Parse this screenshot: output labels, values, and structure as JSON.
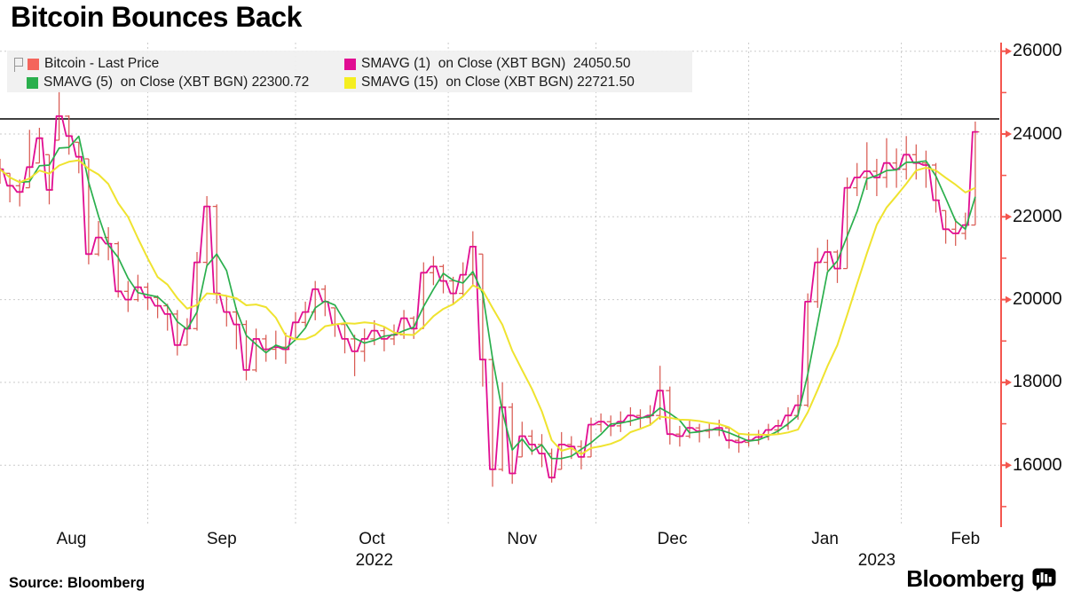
{
  "page": {
    "title": "Bitcoin Bounces Back",
    "source": "Source: Bloomberg",
    "brand": "Bloomberg"
  },
  "legend": {
    "items": [
      {
        "label": "Bitcoin - Last Price",
        "color": "#f4655c"
      },
      {
        "label": "SMAVG (1)  on Close (XBT BGN)  24050.50",
        "color": "#e10d92"
      },
      {
        "label": "SMAVG (5)  on Close (XBT BGN) 22300.72",
        "color": "#2aaf4d"
      },
      {
        "label": "SMAVG (15)  on Close (XBT BGN) 22721.50",
        "color": "#f5ee20"
      }
    ]
  },
  "chart_data": {
    "type": "line",
    "title": "Bitcoin Bounces Back",
    "description": "Daily Bitcoin price (high/low bars with close line) with 5- and 15-period simple moving averages, Aug 2022 - Feb 2023",
    "start_date": "2022-08-02",
    "sample_interval_days": 2,
    "grid": true,
    "legend_position": "top-left",
    "ylim": [
      14600,
      26200
    ],
    "y_ticks": [
      26000,
      24000,
      22000,
      20000,
      18000,
      16000
    ],
    "y_minor_ticks": [
      25000,
      23000,
      21000,
      19000,
      17000,
      15000
    ],
    "ref_line_value": 24364,
    "axis_color": "#f4564e",
    "months": [
      {
        "label": "Aug",
        "mid_day": 14.5
      },
      {
        "label": "Sep",
        "mid_day": 45
      },
      {
        "label": "Oct",
        "mid_day": 75.5
      },
      {
        "label": "Nov",
        "mid_day": 106
      },
      {
        "label": "Dec",
        "mid_day": 136.5
      },
      {
        "label": "Jan",
        "mid_day": 167.5
      },
      {
        "label": "Feb",
        "mid_day": 196
      }
    ],
    "month_start_days": [
      30,
      60,
      91,
      121,
      152,
      183
    ],
    "years": [
      {
        "label": "2022",
        "day": 76
      },
      {
        "label": "2023",
        "day": 178
      }
    ],
    "series": [
      {
        "name": "Bitcoin - Last Price",
        "type": "hlc-bars",
        "bar_color": "#d95b53",
        "close": [
          23150,
          22750,
          22600,
          23200,
          23900,
          22650,
          24430,
          23950,
          23450,
          21100,
          21500,
          21350,
          20200,
          20000,
          20300,
          20050,
          19850,
          19650,
          18900,
          19300,
          20900,
          22250,
          20150,
          19700,
          19400,
          18300,
          19050,
          18800,
          18850,
          18800,
          19450,
          19700,
          20250,
          19950,
          19400,
          19050,
          18750,
          19050,
          19250,
          19050,
          19150,
          19550,
          19300,
          20650,
          20800,
          20450,
          20150,
          20600,
          21280,
          18550,
          15900,
          17400,
          15800,
          16700,
          16500,
          16280,
          15700,
          16500,
          16450,
          16200,
          16980,
          17050,
          16950,
          17050,
          17200,
          17150,
          17200,
          17800,
          16750,
          16700,
          16900,
          16820,
          16850,
          16900,
          16600,
          16550,
          16600,
          16680,
          16850,
          16950,
          17200,
          17450,
          19950,
          20900,
          21150,
          20750,
          22700,
          22950,
          23100,
          22950,
          23300,
          23150,
          23500,
          23300,
          23250,
          22400,
          21700,
          21600,
          21800,
          24050.5
        ],
        "high": [
          23400,
          23050,
          22900,
          24100,
          24150,
          23500,
          25050,
          24450,
          23800,
          23400,
          21900,
          21750,
          21400,
          20450,
          20600,
          20400,
          20100,
          19900,
          19750,
          19550,
          21150,
          22500,
          22300,
          20100,
          19800,
          19500,
          19300,
          19150,
          19250,
          19200,
          19700,
          19950,
          20450,
          20350,
          19800,
          19400,
          19150,
          19300,
          19500,
          19350,
          19400,
          19750,
          19600,
          20900,
          21050,
          20850,
          20550,
          20900,
          21650,
          21100,
          18600,
          18000,
          17500,
          17050,
          16850,
          16750,
          16400,
          16800,
          16700,
          16600,
          17150,
          17250,
          17200,
          17300,
          17400,
          17350,
          17450,
          18400,
          17900,
          16950,
          17100,
          17000,
          17000,
          17100,
          16900,
          16750,
          16800,
          16850,
          17000,
          17100,
          17400,
          17700,
          20150,
          21250,
          21450,
          21200,
          22950,
          23300,
          23800,
          23400,
          23900,
          23650,
          23950,
          23750,
          23600,
          23300,
          22150,
          21950,
          22100,
          24300
        ],
        "low": [
          22800,
          22350,
          22250,
          22700,
          23300,
          22300,
          23850,
          23500,
          23050,
          20850,
          21050,
          20950,
          20050,
          19700,
          19950,
          19750,
          19550,
          19250,
          18650,
          18900,
          19250,
          20800,
          19900,
          19350,
          18800,
          18050,
          18250,
          18500,
          18550,
          18450,
          19050,
          19350,
          19500,
          19600,
          19100,
          18700,
          18150,
          18500,
          18900,
          18750,
          18900,
          19050,
          19050,
          19300,
          20350,
          20150,
          19900,
          20100,
          20350,
          17900,
          15480,
          15850,
          15550,
          16200,
          16250,
          15950,
          15580,
          15900,
          16150,
          15900,
          16200,
          16800,
          16700,
          16800,
          16950,
          16900,
          16950,
          17100,
          16500,
          16450,
          16650,
          16550,
          16650,
          16700,
          16400,
          16300,
          16450,
          16500,
          16600,
          16750,
          16850,
          17100,
          17400,
          19800,
          20700,
          20400,
          20750,
          22500,
          22650,
          22500,
          22700,
          22700,
          22900,
          22900,
          22700,
          22100,
          21350,
          21300,
          21450,
          21800
        ]
      },
      {
        "name": "SMAVG (1) on Close (XBT BGN)",
        "type": "close-line",
        "color": "#e10d92",
        "last_value": 24050.5
      },
      {
        "name": "SMAVG (5) on Close (XBT BGN)",
        "type": "sma",
        "window_samples": 3,
        "color": "#2aaf4d",
        "last_value": 22300.72
      },
      {
        "name": "SMAVG (15) on Close (XBT BGN)",
        "type": "sma",
        "window_samples": 8,
        "color": "#efe32f",
        "last_value": 22721.5
      }
    ]
  }
}
